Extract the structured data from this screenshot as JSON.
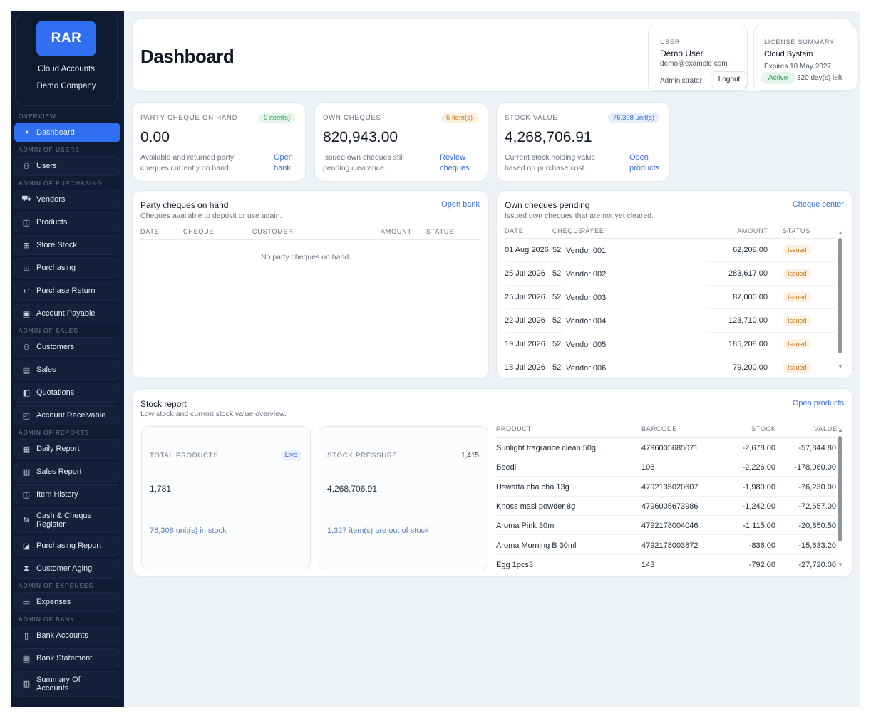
{
  "brand": {
    "logo_text": "RAR",
    "line1": "Cloud Accounts",
    "line2": "Demo Company"
  },
  "sidebar": {
    "sections": [
      {
        "title": "OVERVIEW",
        "items": [
          {
            "label": "Dashboard",
            "icon": "gauge-icon",
            "glyph": "◔",
            "active": true
          }
        ]
      },
      {
        "title": "ADMIN OF USERS",
        "items": [
          {
            "label": "Users",
            "icon": "users-icon",
            "glyph": "⚇"
          }
        ]
      },
      {
        "title": "ADMIN OF PURCHASING",
        "items": [
          {
            "label": "Vendors",
            "icon": "truck-icon",
            "glyph": "⛟"
          },
          {
            "label": "Products",
            "icon": "box-icon",
            "glyph": "◫"
          },
          {
            "label": "Store Stock",
            "icon": "boxes-icon",
            "glyph": "⊞"
          },
          {
            "label": "Purchasing",
            "icon": "cart-icon",
            "glyph": "⊡"
          },
          {
            "label": "Purchase Return",
            "icon": "return-arrow-icon",
            "glyph": "↩"
          },
          {
            "label": "Account Payable",
            "icon": "cash-icon",
            "glyph": "▣"
          }
        ]
      },
      {
        "title": "ADMIN OF SALES",
        "items": [
          {
            "label": "Customers",
            "icon": "customers-icon",
            "glyph": "⚇"
          },
          {
            "label": "Sales",
            "icon": "receipt-icon",
            "glyph": "▤"
          },
          {
            "label": "Quotations",
            "icon": "file-icon",
            "glyph": "◧"
          },
          {
            "label": "Account Receivable",
            "icon": "wallet-icon",
            "glyph": "◰"
          }
        ]
      },
      {
        "title": "ADMIN OF REPORTS",
        "items": [
          {
            "label": "Daily Report",
            "icon": "calendar-icon",
            "glyph": "▦"
          },
          {
            "label": "Sales Report",
            "icon": "bar-chart-icon",
            "glyph": "▥"
          },
          {
            "label": "Item History",
            "icon": "cube-icon",
            "glyph": "◫"
          },
          {
            "label": "Cash & Cheque\nRegister",
            "icon": "swap-icon",
            "glyph": "⇆",
            "tall": true
          },
          {
            "label": "Purchasing Report",
            "icon": "report-icon",
            "glyph": "◪"
          },
          {
            "label": "Customer Aging",
            "icon": "hourglass-icon",
            "glyph": "⧗"
          }
        ]
      },
      {
        "title": "ADMIN OF EXPENSES",
        "items": [
          {
            "label": "Expenses",
            "icon": "expenses-icon",
            "glyph": "▭"
          }
        ]
      },
      {
        "title": "ADMIN OF BANK",
        "items": [
          {
            "label": "Bank Accounts",
            "icon": "bank-icon",
            "glyph": "▯"
          },
          {
            "label": "Bank Statement",
            "icon": "statement-icon",
            "glyph": "▤"
          },
          {
            "label": "Summary Of\nAccounts",
            "icon": "summary-chart-icon",
            "glyph": "▥",
            "tall": true
          }
        ]
      }
    ]
  },
  "header": {
    "title": "Dashboard"
  },
  "user": {
    "label": "USER",
    "name": "Demo User",
    "email": "demo@example.com",
    "role": "Administrator",
    "logout": "Logout"
  },
  "license": {
    "title": "LICENSE SUMMARY",
    "system": "Cloud System",
    "expires": "Expires 10 May 2027",
    "status": "Active",
    "days_left": "320 day(s) left"
  },
  "stats": [
    {
      "title": "PARTY CHEQUE ON HAND",
      "badge": "0 item(s)",
      "badge_color": "green",
      "value": "0.00",
      "desc": "Available and returned party cheques currently on hand.",
      "link": "Open bank"
    },
    {
      "title": "OWN CHEQUES",
      "badge": "6 item(s)",
      "badge_color": "orange",
      "value": "820,943.00",
      "desc": "Issued own cheques still pending clearance.",
      "link": "Review cheques"
    },
    {
      "title": "STOCK VALUE",
      "badge": "76,308 unit(s)",
      "badge_color": "blue",
      "value": "4,268,706.91",
      "desc": "Current stock holding value based on purchase cost.",
      "link": "Open products"
    }
  ],
  "party_panel": {
    "title": "Party cheques on hand",
    "subtitle": "Cheques available to deposit or use again.",
    "link": "Open bank",
    "columns": [
      "DATE",
      "CHEQUE",
      "CUSTOMER",
      "AMOUNT",
      "STATUS"
    ],
    "empty": "No party cheques on hand."
  },
  "own_panel": {
    "title": "Own cheques pending",
    "subtitle": "Issued own cheques that are not yet cleared.",
    "link": "Cheque center",
    "columns": [
      "DATE",
      "CHEQUE",
      "PAYEE",
      "AMOUNT",
      "STATUS"
    ],
    "rows": [
      {
        "date": "01 Aug 2026",
        "cheque": "52",
        "payee": "Vendor 001",
        "amount": "62,208.00",
        "status": "Issued"
      },
      {
        "date": "25 Jul 2026",
        "cheque": "52",
        "payee": "Vendor 002",
        "amount": "283,617.00",
        "status": "Issued"
      },
      {
        "date": "25 Jul 2026",
        "cheque": "52",
        "payee": "Vendor 003",
        "amount": "87,000.00",
        "status": "Issued"
      },
      {
        "date": "22 Jul 2026",
        "cheque": "52",
        "payee": "Vendor 004",
        "amount": "123,710.00",
        "status": "Issued"
      },
      {
        "date": "19 Jul 2026",
        "cheque": "52",
        "payee": "Vendor 005",
        "amount": "185,208.00",
        "status": "Issued"
      },
      {
        "date": "18 Jul 2026",
        "cheque": "52",
        "payee": "Vendor 006",
        "amount": "79,200.00",
        "status": "Issued"
      }
    ]
  },
  "stock_report": {
    "title": "Stock report",
    "subtitle": "Low stock and current stock value overview.",
    "link": "Open products",
    "total_products": {
      "title": "TOTAL PRODUCTS",
      "badge": "Live",
      "value": "1,781",
      "foot": "76,308 unit(s) in stock"
    },
    "stock_pressure": {
      "title": "STOCK PRESSURE",
      "count": "1,415",
      "value": "4,268,706.91",
      "foot": "1,327 item(s) are out of stock"
    },
    "columns": [
      "PRODUCT",
      "BARCODE",
      "STOCK",
      "VALUE"
    ],
    "rows": [
      {
        "product": "Sunlight fragrance clean 50g",
        "barcode": "4796005685071",
        "stock": "-2,678.00",
        "value": "-57,844.80"
      },
      {
        "product": "Beedi",
        "barcode": "108",
        "stock": "-2,226.00",
        "value": "-178,080.00"
      },
      {
        "product": "Uswatta cha cha 13g",
        "barcode": "4792135020607",
        "stock": "-1,980.00",
        "value": "-76,230.00"
      },
      {
        "product": "Knoss masi powder 8g",
        "barcode": "4796005673986",
        "stock": "-1,242.00",
        "value": "-72,657.00"
      },
      {
        "product": "Aroma Pink 30ml",
        "barcode": "4792178004046",
        "stock": "-1,115.00",
        "value": "-20,850.50"
      },
      {
        "product": "Aroma Morning B 30ml",
        "barcode": "4792178003872",
        "stock": "-836.00",
        "value": "-15,633.20"
      },
      {
        "product": "Egg 1pcs3",
        "barcode": "143",
        "stock": "-792.00",
        "value": "-27,720.00"
      }
    ]
  }
}
